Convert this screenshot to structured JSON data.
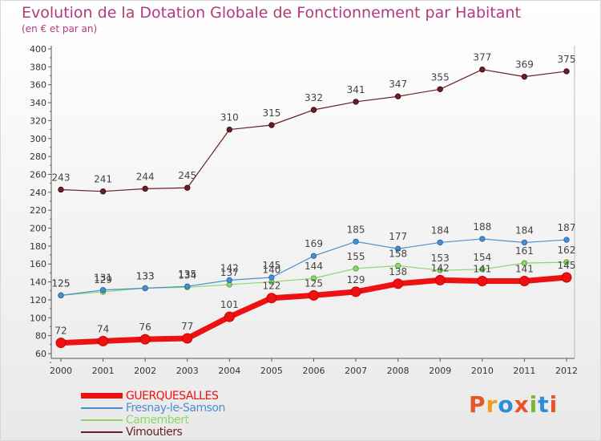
{
  "header": {
    "title": "Evolution de la Dotation Globale de Fonctionnement par Habitant",
    "subtitle": "(en € et par an)"
  },
  "logo": {
    "text": "Proxiti",
    "colors": [
      "#e8542a",
      "#f39b1c",
      "#2c8ed6",
      "#e8542a",
      "#7ab82e",
      "#2c8ed6",
      "#e8542a"
    ]
  },
  "chart_data": {
    "type": "line",
    "title": "Evolution de la Dotation Globale de Fonctionnement par Habitant",
    "subtitle": "(en € et par an)",
    "x": [
      "2000",
      "2001",
      "2002",
      "2003",
      "2004",
      "2005",
      "2006",
      "2007",
      "2008",
      "2009",
      "2010",
      "2011",
      "2012"
    ],
    "ylim": [
      60,
      400
    ],
    "yticks": [
      60,
      80,
      100,
      120,
      140,
      160,
      180,
      200,
      220,
      240,
      260,
      280,
      300,
      320,
      340,
      360,
      380,
      400
    ],
    "grid": false,
    "legend_position": "bottom-left",
    "series": [
      {
        "name": "GUERQUESALLES",
        "color": "#ee1111",
        "values": [
          72,
          74,
          76,
          77,
          101,
          122,
          125,
          129,
          138,
          142,
          141,
          141,
          145
        ]
      },
      {
        "name": "Fresnay-le-Samson",
        "color": "#4a90d0",
        "values": [
          125,
          131,
          133,
          135,
          142,
          145,
          169,
          185,
          177,
          184,
          188,
          184,
          187
        ]
      },
      {
        "name": "Camembert",
        "color": "#8cd66b",
        "values": [
          125,
          129,
          133,
          134,
          137,
          140,
          144,
          155,
          158,
          153,
          154,
          161,
          162
        ]
      },
      {
        "name": "Vimoutiers",
        "color": "#6b1f24",
        "values": [
          243,
          241,
          244,
          245,
          310,
          315,
          332,
          341,
          347,
          355,
          377,
          369,
          375
        ]
      }
    ]
  }
}
